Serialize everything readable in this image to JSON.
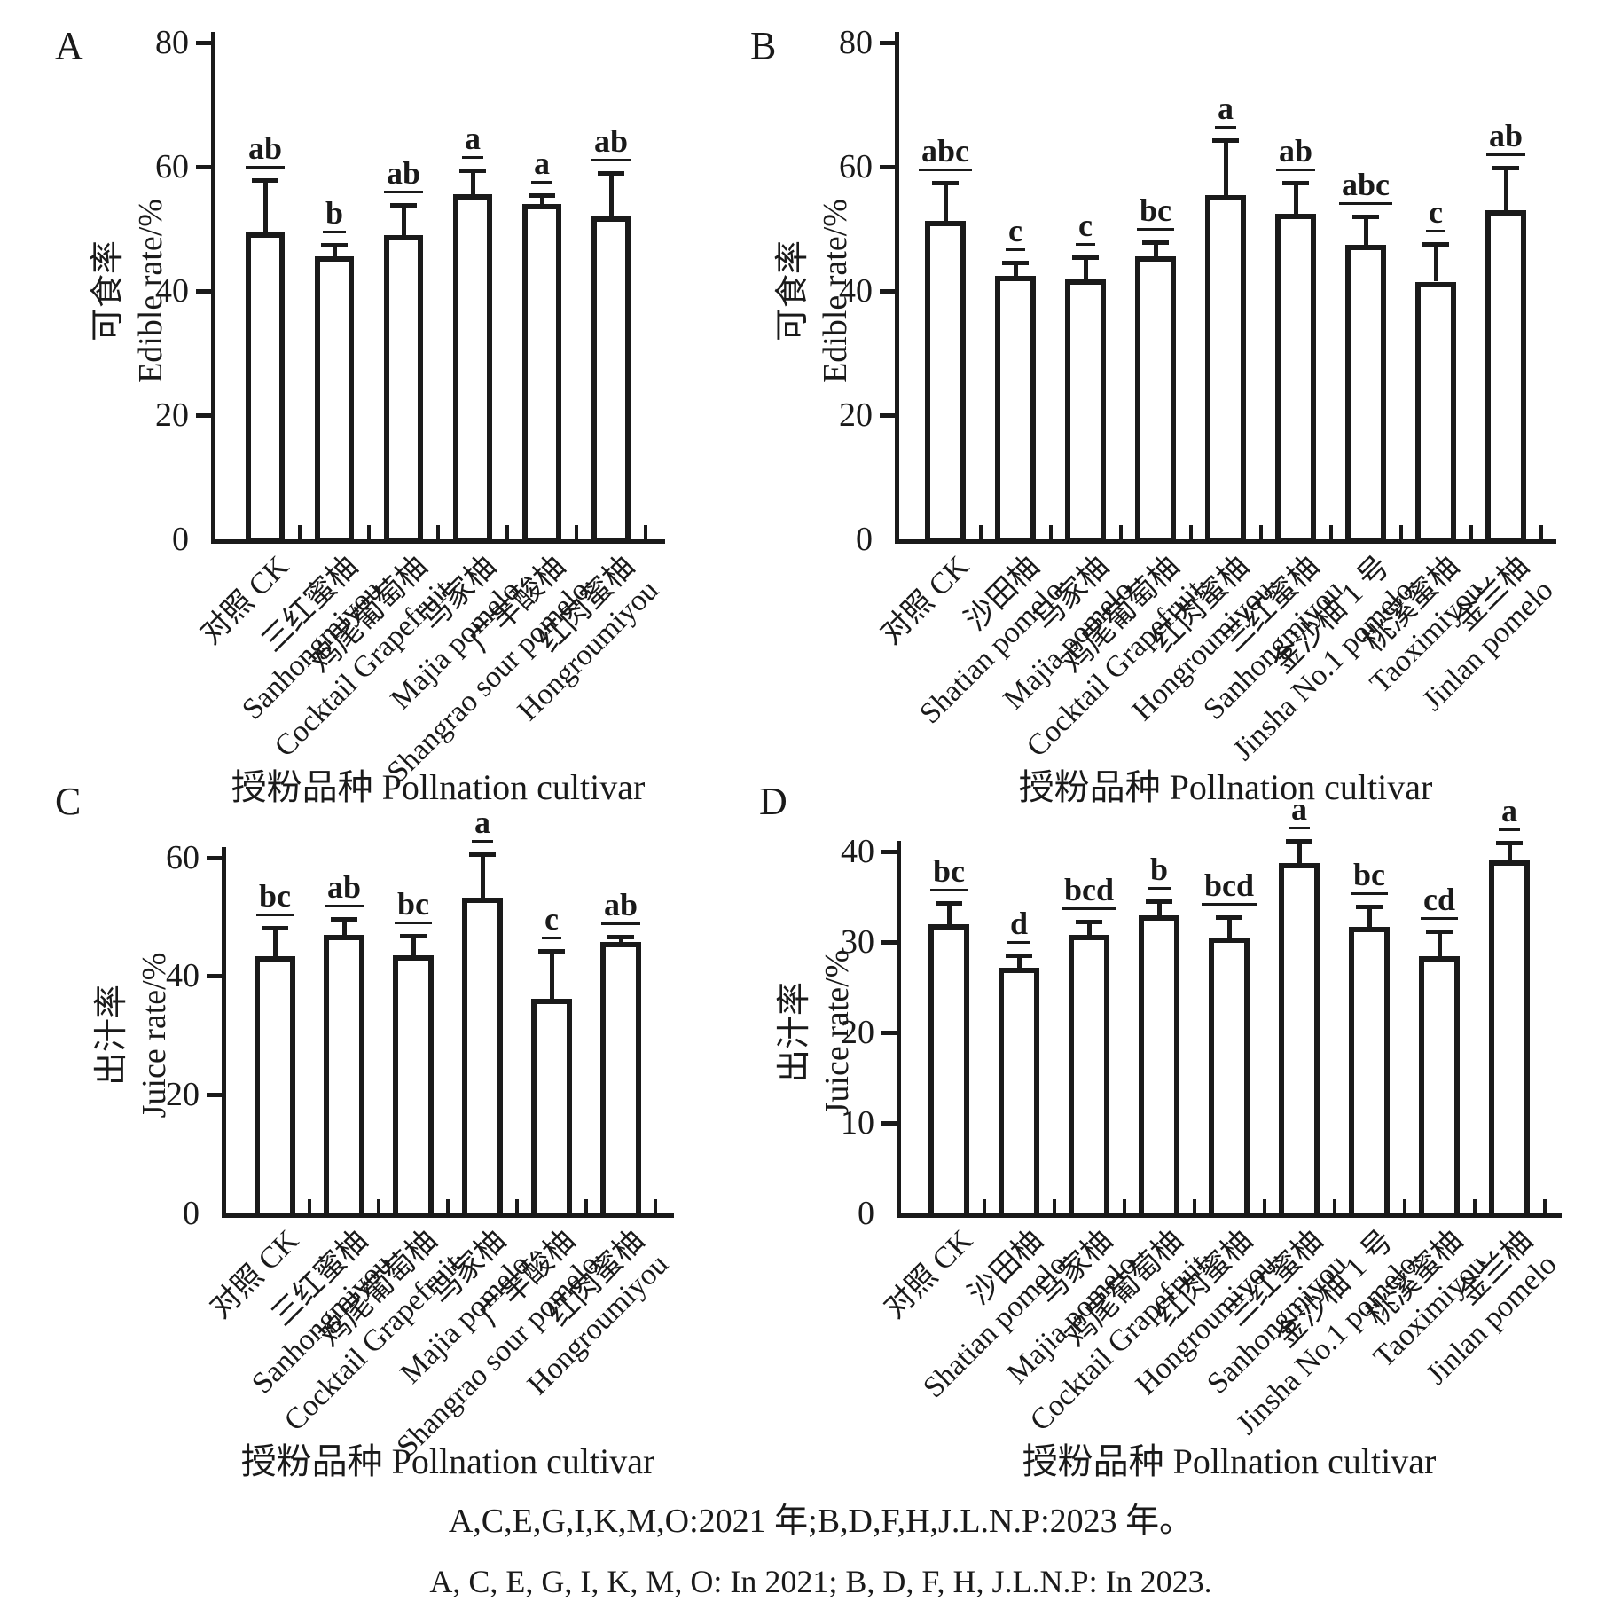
{
  "figure": {
    "background": "#ffffff",
    "ink_color": "#1a1a1a",
    "caption_cn": "A,C,E,G,I,K,M,O:2021 年;B,D,F,H,J.L.N.P:2023 年。",
    "caption_en": "A, C, E, G, I, K, M, O: In 2021; B, D, F, H, J.L.N.P: In 2023."
  },
  "chart_data": [
    {
      "type": "bar",
      "panel": "A",
      "ylabel_cn": "可食率",
      "ylabel_en": "Edible rate/%",
      "xlabel": "授粉品种 Pollnation cultivar",
      "ylim": [
        0,
        80
      ],
      "yticks": [
        0,
        20,
        40,
        60,
        80
      ],
      "legend": "none",
      "grid": false,
      "categories_cn": [
        "对照 CK",
        "三红蜜柚",
        "鸡尾葡萄柚",
        "马家柚",
        "广丰酸柚",
        "红肉蜜柚"
      ],
      "categories_en": [
        "",
        "Sanhongmiyou",
        "Cocktail Grapefruit",
        "Majia pomelo",
        "Shangrao sour pomelo",
        "Hongroumiyou"
      ],
      "values": [
        49.4,
        45.6,
        49.0,
        55.6,
        54.0,
        52.0
      ],
      "error_top": [
        57.8,
        47.4,
        53.8,
        59.4,
        55.4,
        59.0
      ],
      "sig_letters": [
        "ab",
        "b",
        "ab",
        "a",
        "a",
        "ab"
      ]
    },
    {
      "type": "bar",
      "panel": "B",
      "ylabel_cn": "可食率",
      "ylabel_en": "Edible rate/%",
      "xlabel": "授粉品种 Pollnation cultivar",
      "ylim": [
        0,
        80
      ],
      "yticks": [
        0,
        20,
        40,
        60,
        80
      ],
      "legend": "none",
      "grid": false,
      "categories_cn": [
        "对照 CK",
        "沙田柚",
        "马家柚",
        "鸡尾葡萄柚",
        "红肉蜜柚",
        "三红蜜柚",
        "金沙柚 1 号",
        "桃溪蜜柚",
        "金兰柚"
      ],
      "categories_en": [
        "",
        "Shatian pomelo",
        "Majia pomelo",
        "Cocktail Grapefruit",
        "Hongroumiyou",
        "Sanhongmiyou",
        "Jinsha No.1 pomelo",
        "Taoximiyou",
        "Jinlan pomelo"
      ],
      "values": [
        51.3,
        42.4,
        41.8,
        45.6,
        55.4,
        52.4,
        47.4,
        41.5,
        53.0
      ],
      "error_top": [
        57.5,
        44.6,
        45.4,
        47.8,
        64.3,
        57.4,
        52.0,
        47.6,
        59.8
      ],
      "sig_letters": [
        "abc",
        "c",
        "c",
        "bc",
        "a",
        "ab",
        "abc",
        "c",
        "ab"
      ]
    },
    {
      "type": "bar",
      "panel": "C",
      "ylabel_cn": "出汁率",
      "ylabel_en": "Juice rate/%",
      "xlabel": "授粉品种 Pollnation cultivar",
      "ylim": [
        0,
        60
      ],
      "yticks": [
        0,
        20,
        40,
        60
      ],
      "legend": "none",
      "grid": false,
      "categories_cn": [
        "对照 CK",
        "三红蜜柚",
        "鸡尾葡萄柚",
        "马家柚",
        "广丰酸柚",
        "红肉蜜柚"
      ],
      "categories_en": [
        "",
        "Sanhongmiyou",
        "Cocktail Grapefruit",
        "Majia pomelo",
        "Shangrao sour pomelo",
        "Hongroumiyou"
      ],
      "values": [
        43.3,
        47.0,
        43.5,
        53.2,
        36.2,
        45.7
      ],
      "error_top": [
        48.2,
        49.6,
        46.8,
        60.6,
        44.2,
        46.6
      ],
      "sig_letters": [
        "bc",
        "ab",
        "bc",
        "a",
        "c",
        "ab"
      ]
    },
    {
      "type": "bar",
      "panel": "D",
      "ylabel_cn": "出汁率",
      "ylabel_en": "Juice rate/%",
      "xlabel": "授粉品种 Pollnation cultivar",
      "ylim": [
        0,
        40
      ],
      "yticks": [
        0,
        10,
        20,
        30,
        40
      ],
      "legend": "none",
      "grid": false,
      "categories_cn": [
        "对照 CK",
        "沙田柚",
        "马家柚",
        "鸡尾葡萄柚",
        "红肉蜜柚",
        "三红蜜柚",
        "金沙柚 1 号",
        "桃溪蜜柚",
        "金兰柚"
      ],
      "categories_en": [
        "",
        "Shatian pomelo",
        "Majia pomelo",
        "Cocktail Grapefruit",
        "Hongroumiyou",
        "Sanhongmiyou",
        "Jinsha No.1 pomelo",
        "Taoximiyou",
        "Jinlan pomelo"
      ],
      "values": [
        32.0,
        27.2,
        30.8,
        32.9,
        30.5,
        38.7,
        31.7,
        28.4,
        39.0
      ],
      "error_top": [
        34.3,
        28.5,
        32.3,
        34.5,
        32.7,
        41.2,
        33.9,
        31.2,
        41.0
      ],
      "sig_letters": [
        "bc",
        "d",
        "bcd",
        "b",
        "bcd",
        "a",
        "bc",
        "cd",
        "a"
      ]
    }
  ]
}
